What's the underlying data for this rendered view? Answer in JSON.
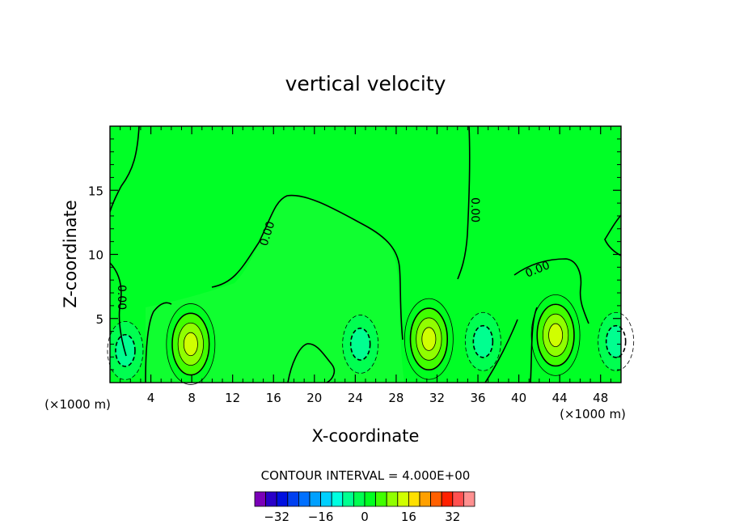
{
  "chart_data": {
    "type": "contour",
    "title": "vertical velocity",
    "xlabel": "X-coordinate",
    "ylabel": "Z-coordinate",
    "x_unit_note": "(×1000 m)",
    "x_unit_note_right": "(×1000 m)",
    "xlim": [
      0,
      50
    ],
    "ylim": [
      0,
      20
    ],
    "xticks": [
      4,
      8,
      12,
      16,
      20,
      24,
      28,
      32,
      36,
      40,
      44,
      48
    ],
    "yticks": [
      5,
      10,
      15
    ],
    "contour_label": "0.00",
    "contour_interval_text": "CONTOUR INTERVAL = 4.000E+00",
    "colorbar": {
      "levels": [
        -36,
        -32,
        -28,
        -24,
        -20,
        -16,
        -12,
        -8,
        -4,
        0,
        4,
        8,
        12,
        16,
        20,
        24,
        28,
        32,
        36
      ],
      "tick_labels": [
        "-32",
        "-16",
        "0",
        "16",
        "32"
      ],
      "tick_values": [
        -32,
        -16,
        0,
        16,
        32
      ],
      "colors": [
        "#7a00b8",
        "#2a00c8",
        "#0010e0",
        "#0040f0",
        "#0070ff",
        "#00a0ff",
        "#00d0ff",
        "#00ffe0",
        "#00ff90",
        "#00ff50",
        "#00ff20",
        "#40ff00",
        "#90ff00",
        "#d0ff00",
        "#ffe000",
        "#ffa000",
        "#ff6000",
        "#ff2000",
        "#ff5050",
        "#ff9090"
      ]
    },
    "updrafts": [
      {
        "x": 7.9,
        "z": 3.0,
        "peak": 14
      },
      {
        "x": 31.2,
        "z": 3.4,
        "peak": 14
      },
      {
        "x": 43.6,
        "z": 3.7,
        "peak": 12
      }
    ],
    "downdrafts": [
      {
        "x": 1.5,
        "z": 2.5,
        "peak": -6
      },
      {
        "x": 24.5,
        "z": 3.0,
        "peak": -5
      },
      {
        "x": 36.5,
        "z": 3.2,
        "peak": -6
      },
      {
        "x": 49.5,
        "z": 3.2,
        "peak": -5
      }
    ]
  }
}
